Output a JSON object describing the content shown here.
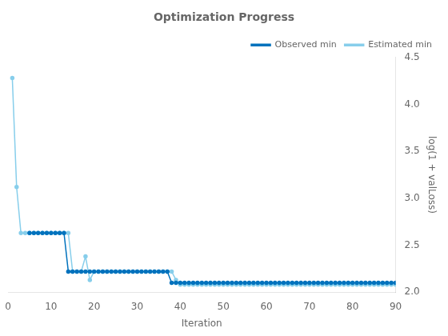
{
  "chart_data": {
    "type": "line",
    "title": "Optimization Progress",
    "x_label": "Iteration",
    "y_label": "log(1 + valLoss)",
    "xlim": [
      0,
      90
    ],
    "ylim": [
      2.0,
      4.5
    ],
    "xticks": [
      0,
      10,
      20,
      30,
      40,
      50,
      60,
      70,
      80,
      90
    ],
    "yticks": [
      {
        "value": 2.0,
        "label": "2.0"
      },
      2.5,
      {
        "value": 3.0,
        "label": "3.0"
      },
      3.5,
      {
        "value": 4.0,
        "label": "4.0"
      },
      4.5
    ],
    "grid": false,
    "legend": "upper right",
    "series": [
      {
        "name": "Observed min",
        "color": "#0072BD",
        "marker": "circle",
        "line_style": "solid",
        "x": [
          5,
          6,
          7,
          8,
          9,
          10,
          11,
          12,
          13,
          14,
          15,
          16,
          17,
          18,
          19,
          20,
          21,
          22,
          23,
          24,
          25,
          26,
          27,
          28,
          29,
          30,
          31,
          32,
          33,
          34,
          35,
          36,
          37,
          38,
          39,
          40,
          41,
          42,
          43,
          44,
          45,
          46,
          47,
          48,
          49,
          50,
          51,
          52,
          53,
          54,
          55,
          56,
          57,
          58,
          59,
          60,
          61,
          62,
          63,
          64,
          65,
          66,
          67,
          68,
          69,
          70,
          71,
          72,
          73,
          74,
          75,
          76,
          77,
          78,
          79,
          80,
          81,
          82,
          83,
          84,
          85,
          86,
          87,
          88,
          89,
          90
        ],
        "values": [
          2.63,
          2.63,
          2.63,
          2.63,
          2.63,
          2.63,
          2.63,
          2.63,
          2.63,
          2.22,
          2.22,
          2.22,
          2.22,
          2.22,
          2.22,
          2.22,
          2.22,
          2.22,
          2.22,
          2.22,
          2.22,
          2.22,
          2.22,
          2.22,
          2.22,
          2.22,
          2.22,
          2.22,
          2.22,
          2.22,
          2.22,
          2.22,
          2.22,
          2.1,
          2.1,
          2.1,
          2.1,
          2.1,
          2.1,
          2.1,
          2.1,
          2.1,
          2.1,
          2.1,
          2.1,
          2.1,
          2.1,
          2.1,
          2.1,
          2.1,
          2.1,
          2.1,
          2.1,
          2.1,
          2.1,
          2.1,
          2.1,
          2.1,
          2.1,
          2.1,
          2.1,
          2.1,
          2.1,
          2.1,
          2.1,
          2.1,
          2.1,
          2.1,
          2.1,
          2.1,
          2.1,
          2.1,
          2.1,
          2.1,
          2.1,
          2.1,
          2.1,
          2.1,
          2.1,
          2.1,
          2.1,
          2.1,
          2.1,
          2.1,
          2.1,
          2.1
        ]
      },
      {
        "name": "Estimated min",
        "color": "#87CEEB",
        "marker": "circle",
        "line_style": "solid",
        "x": [
          1,
          2,
          3,
          4,
          5,
          6,
          7,
          8,
          9,
          10,
          11,
          12,
          13,
          14,
          15,
          16,
          17,
          18,
          19,
          20,
          21,
          22,
          23,
          24,
          25,
          26,
          27,
          28,
          29,
          30,
          31,
          32,
          33,
          34,
          35,
          36,
          37,
          38,
          39,
          40,
          41,
          42,
          43,
          44,
          45,
          46,
          47,
          48,
          49,
          50,
          51,
          52,
          53,
          54,
          55,
          56,
          57,
          58,
          59,
          60,
          61,
          62,
          63,
          64,
          65,
          66,
          67,
          68,
          69,
          70,
          71,
          72,
          73,
          74,
          75,
          76,
          77,
          78,
          79,
          80,
          81,
          82,
          83,
          84,
          85,
          86,
          87,
          88,
          89,
          90
        ],
        "values": [
          4.28,
          3.12,
          2.63,
          2.63,
          2.63,
          2.63,
          2.63,
          2.63,
          2.63,
          2.63,
          2.63,
          2.63,
          2.63,
          2.63,
          2.22,
          2.22,
          2.22,
          2.38,
          2.13,
          2.22,
          2.22,
          2.22,
          2.22,
          2.22,
          2.22,
          2.22,
          2.22,
          2.22,
          2.22,
          2.22,
          2.22,
          2.22,
          2.22,
          2.22,
          2.22,
          2.22,
          2.22,
          2.22,
          2.13,
          2.08,
          2.08,
          2.08,
          2.08,
          2.08,
          2.08,
          2.08,
          2.08,
          2.08,
          2.08,
          2.08,
          2.08,
          2.08,
          2.08,
          2.08,
          2.08,
          2.08,
          2.08,
          2.08,
          2.08,
          2.08,
          2.08,
          2.08,
          2.08,
          2.08,
          2.08,
          2.08,
          2.08,
          2.08,
          2.08,
          2.08,
          2.08,
          2.08,
          2.08,
          2.08,
          2.08,
          2.08,
          2.08,
          2.08,
          2.08,
          2.08,
          2.08,
          2.08,
          2.08,
          2.08,
          2.08,
          2.08,
          2.08,
          2.08,
          2.08,
          2.08
        ]
      }
    ]
  }
}
